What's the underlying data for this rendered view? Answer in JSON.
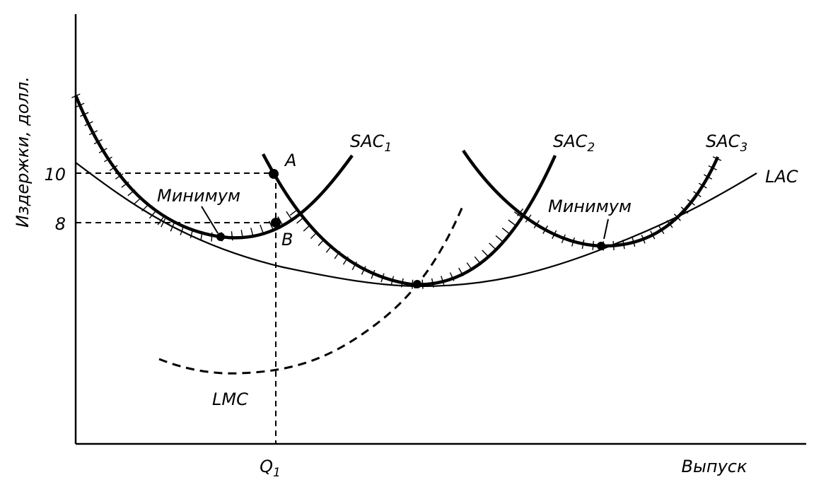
{
  "axes": {
    "y_label": "Издержки, долл.",
    "x_label": "Выпуск",
    "y_ticks": [
      "10",
      "8"
    ],
    "x_tick": {
      "text": "Q",
      "sub": "1"
    }
  },
  "curves": [
    {
      "text": "SAC",
      "sub": "1"
    },
    {
      "text": "SAC",
      "sub": "2"
    },
    {
      "text": "SAC",
      "sub": "3"
    },
    {
      "text": "LAC"
    },
    {
      "text": "LMC"
    }
  ],
  "points": {
    "a": "A",
    "b": "B"
  },
  "annotations": [
    "Минимум",
    "Минимум"
  ]
}
